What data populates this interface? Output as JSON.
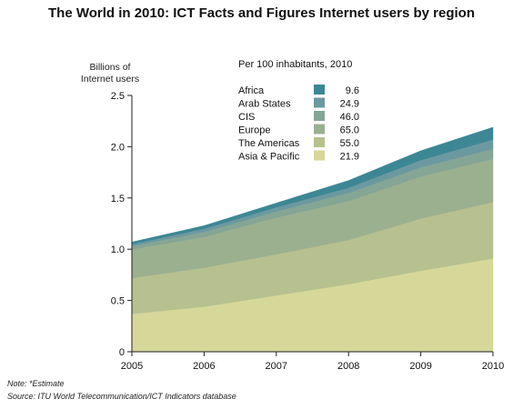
{
  "page": {
    "title": "The World in 2010: ICT Facts and Figures Internet users by region",
    "note": "Note: *Estimate",
    "source": "Source: ITU World Telecommunication/ICT Indicators database"
  },
  "chart_data": {
    "type": "area",
    "stacked": true,
    "ylabel": "Billions of Internet users",
    "legend_title": "Per 100 inhabitants, 2010",
    "legend_position": "top-center",
    "x": [
      2005,
      2006,
      2007,
      2008,
      2009,
      2010
    ],
    "ylim": [
      0,
      2.5
    ],
    "yticks": [
      "0",
      "0.5",
      "1.0",
      "1.5",
      "2.0",
      "2.5"
    ],
    "xticks": [
      "2005",
      "2006",
      "2007",
      "2008",
      "2009",
      "2010"
    ],
    "series": [
      {
        "name": "Asia & Pacific",
        "per100": "21.9",
        "color": "#d6d89a",
        "values": [
          0.37,
          0.44,
          0.55,
          0.66,
          0.79,
          0.91
        ]
      },
      {
        "name": "The Americas",
        "per100": "55.0",
        "color": "#b7c08f",
        "values": [
          0.35,
          0.38,
          0.4,
          0.43,
          0.51,
          0.55
        ]
      },
      {
        "name": "Europe",
        "per100": "65.0",
        "color": "#9bb08f",
        "values": [
          0.28,
          0.3,
          0.36,
          0.38,
          0.41,
          0.42
        ]
      },
      {
        "name": "CIS",
        "per100": "46.0",
        "color": "#85a595",
        "values": [
          0.03,
          0.05,
          0.06,
          0.08,
          0.09,
          0.1
        ]
      },
      {
        "name": "Arab States",
        "per100": "24.9",
        "color": "#6b99a0",
        "values": [
          0.02,
          0.03,
          0.04,
          0.05,
          0.07,
          0.09
        ]
      },
      {
        "name": "Africa",
        "per100": "9.6",
        "color": "#3d8794",
        "values": [
          0.02,
          0.03,
          0.04,
          0.07,
          0.09,
          0.12
        ]
      }
    ]
  }
}
